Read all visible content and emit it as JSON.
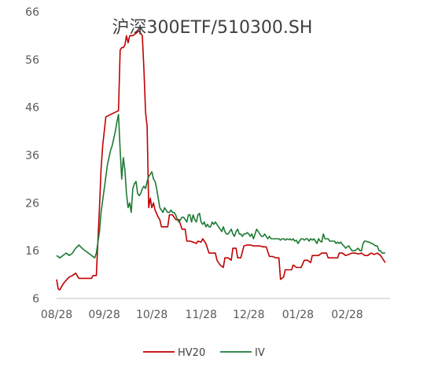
{
  "chart_data": {
    "type": "line",
    "title": "沪深300ETF/510300.SH",
    "xlabel": "",
    "ylabel": "",
    "ylim": [
      6,
      66
    ],
    "yticks": [
      6,
      16,
      26,
      36,
      46,
      56,
      66
    ],
    "xlim": [
      0,
      210
    ],
    "xticks": [
      {
        "label": "08/28",
        "x": 0
      },
      {
        "label": "09/28",
        "x": 30
      },
      {
        "label": "10/28",
        "x": 60
      },
      {
        "label": "11/28",
        "x": 91
      },
      {
        "label": "12/28",
        "x": 121
      },
      {
        "label": "01/28",
        "x": 152
      },
      {
        "label": "02/28",
        "x": 183
      }
    ],
    "grid": false,
    "legend_position": "bottom",
    "series": [
      {
        "name": "HV20",
        "color": "#c00000",
        "points": [
          [
            0,
            10
          ],
          [
            1,
            8
          ],
          [
            2,
            7.8
          ],
          [
            4,
            9
          ],
          [
            6,
            9.8
          ],
          [
            8,
            10.5
          ],
          [
            10,
            10.8
          ],
          [
            12,
            11.3
          ],
          [
            14,
            10.2
          ],
          [
            16,
            10.2
          ],
          [
            18,
            10.2
          ],
          [
            20,
            10.2
          ],
          [
            22,
            10.2
          ],
          [
            23,
            10.8
          ],
          [
            25,
            10.8
          ],
          [
            26,
            18
          ],
          [
            27,
            25
          ],
          [
            28,
            33
          ],
          [
            29,
            38
          ],
          [
            31,
            44
          ],
          [
            34,
            44.5
          ],
          [
            37,
            45
          ],
          [
            39,
            45.3
          ],
          [
            40,
            58
          ],
          [
            41,
            58.5
          ],
          [
            42,
            58.5
          ],
          [
            43,
            59
          ],
          [
            44,
            61
          ],
          [
            45,
            59.5
          ],
          [
            46,
            61
          ],
          [
            48,
            61
          ],
          [
            50,
            61.5
          ],
          [
            52,
            62
          ],
          [
            53,
            61.5
          ],
          [
            54,
            61
          ],
          [
            55,
            54
          ],
          [
            56,
            45
          ],
          [
            57,
            42
          ],
          [
            58,
            25
          ],
          [
            59,
            27
          ],
          [
            60,
            25
          ],
          [
            61,
            26
          ],
          [
            62,
            24.5
          ],
          [
            64,
            23
          ],
          [
            65,
            22.5
          ],
          [
            66,
            21
          ],
          [
            68,
            21
          ],
          [
            70,
            21
          ],
          [
            71,
            23.5
          ],
          [
            73,
            23.5
          ],
          [
            75,
            22.5
          ],
          [
            77,
            22.5
          ],
          [
            79,
            20.5
          ],
          [
            81,
            20.5
          ],
          [
            82,
            18
          ],
          [
            84,
            18
          ],
          [
            86,
            17.8
          ],
          [
            88,
            17.5
          ],
          [
            89,
            18
          ],
          [
            91,
            17.8
          ],
          [
            92,
            18.5
          ],
          [
            94,
            17.5
          ],
          [
            96,
            15.5
          ],
          [
            98,
            15.5
          ],
          [
            100,
            15.5
          ],
          [
            101,
            14
          ],
          [
            103,
            13
          ],
          [
            105,
            12.5
          ],
          [
            106,
            14.5
          ],
          [
            108,
            14.5
          ],
          [
            110,
            14
          ],
          [
            111,
            16.5
          ],
          [
            113,
            16.5
          ],
          [
            114,
            14.5
          ],
          [
            116,
            14.5
          ],
          [
            118,
            17
          ],
          [
            120,
            17.2
          ],
          [
            122,
            17.2
          ],
          [
            124,
            17
          ],
          [
            126,
            17
          ],
          [
            128,
            17
          ],
          [
            130,
            16.8
          ],
          [
            132,
            16.8
          ],
          [
            134,
            14.8
          ],
          [
            136,
            14.8
          ],
          [
            138,
            14.5
          ],
          [
            140,
            14.5
          ],
          [
            141,
            10
          ],
          [
            143,
            10.5
          ],
          [
            144,
            12
          ],
          [
            146,
            12
          ],
          [
            148,
            12
          ],
          [
            149,
            13
          ],
          [
            151,
            12.5
          ],
          [
            152,
            12.5
          ],
          [
            154,
            12.5
          ],
          [
            156,
            14
          ],
          [
            158,
            14
          ],
          [
            160,
            13.5
          ],
          [
            161,
            15
          ],
          [
            163,
            15
          ],
          [
            165,
            15
          ],
          [
            167,
            15.5
          ],
          [
            168,
            15.5
          ],
          [
            170,
            15.5
          ],
          [
            171,
            14.5
          ],
          [
            173,
            14.5
          ],
          [
            175,
            14.5
          ],
          [
            177,
            14.5
          ],
          [
            178,
            15.5
          ],
          [
            180,
            15.5
          ],
          [
            182,
            15
          ],
          [
            184,
            15.2
          ],
          [
            186,
            15.5
          ],
          [
            188,
            15.5
          ],
          [
            190,
            15.3
          ],
          [
            192,
            15.5
          ],
          [
            194,
            15
          ],
          [
            196,
            15
          ],
          [
            198,
            15.5
          ],
          [
            200,
            15.2
          ],
          [
            202,
            15.5
          ],
          [
            204,
            15
          ],
          [
            206,
            14
          ],
          [
            207,
            13.5
          ]
        ]
      },
      {
        "name": "IV",
        "color": "#1e7a34",
        "points": [
          [
            0,
            15
          ],
          [
            2,
            14.5
          ],
          [
            4,
            15
          ],
          [
            6,
            15.5
          ],
          [
            8,
            15
          ],
          [
            10,
            15.5
          ],
          [
            12,
            16.5
          ],
          [
            14,
            17.2
          ],
          [
            16,
            16.5
          ],
          [
            18,
            16
          ],
          [
            20,
            15.5
          ],
          [
            22,
            15
          ],
          [
            24,
            14.5
          ],
          [
            25,
            15.5
          ],
          [
            27,
            20
          ],
          [
            28,
            24
          ],
          [
            30,
            29
          ],
          [
            32,
            34
          ],
          [
            34,
            37
          ],
          [
            35,
            38
          ],
          [
            37,
            41
          ],
          [
            38,
            43
          ],
          [
            39,
            44.5
          ],
          [
            40,
            37
          ],
          [
            41,
            31
          ],
          [
            42,
            35.5
          ],
          [
            43,
            33
          ],
          [
            44,
            28
          ],
          [
            45,
            25
          ],
          [
            46,
            26
          ],
          [
            47,
            24
          ],
          [
            48,
            29
          ],
          [
            49,
            30
          ],
          [
            50,
            30.5
          ],
          [
            51,
            28
          ],
          [
            52,
            27.5
          ],
          [
            53,
            28
          ],
          [
            54,
            29
          ],
          [
            55,
            29.5
          ],
          [
            56,
            29
          ],
          [
            57,
            30.5
          ],
          [
            58,
            31.5
          ],
          [
            59,
            32
          ],
          [
            60,
            32.5
          ],
          [
            61,
            31
          ],
          [
            62,
            30.5
          ],
          [
            63,
            29
          ],
          [
            64,
            27
          ],
          [
            65,
            25
          ],
          [
            66,
            24.5
          ],
          [
            67,
            24
          ],
          [
            68,
            25
          ],
          [
            69,
            24.5
          ],
          [
            70,
            24
          ],
          [
            71,
            24
          ],
          [
            72,
            24.5
          ],
          [
            73,
            24
          ],
          [
            74,
            24
          ],
          [
            75,
            23.5
          ],
          [
            76,
            22.5
          ],
          [
            77,
            22
          ],
          [
            78,
            22.5
          ],
          [
            79,
            23
          ],
          [
            80,
            23
          ],
          [
            81,
            22.5
          ],
          [
            82,
            22
          ],
          [
            83,
            23.5
          ],
          [
            84,
            23.5
          ],
          [
            85,
            22
          ],
          [
            86,
            23.5
          ],
          [
            87,
            22.5
          ],
          [
            88,
            22
          ],
          [
            89,
            23.5
          ],
          [
            90,
            23.8
          ],
          [
            91,
            22
          ],
          [
            92,
            21.5
          ],
          [
            93,
            22
          ],
          [
            94,
            21
          ],
          [
            95,
            21.5
          ],
          [
            96,
            21
          ],
          [
            97,
            21
          ],
          [
            98,
            22
          ],
          [
            99,
            21.5
          ],
          [
            100,
            22
          ],
          [
            101,
            21.5
          ],
          [
            102,
            21
          ],
          [
            103,
            20.5
          ],
          [
            104,
            20
          ],
          [
            105,
            21
          ],
          [
            106,
            20
          ],
          [
            107,
            19.5
          ],
          [
            108,
            19.5
          ],
          [
            109,
            20
          ],
          [
            110,
            20.5
          ],
          [
            111,
            19.5
          ],
          [
            112,
            19
          ],
          [
            113,
            20
          ],
          [
            114,
            20.5
          ],
          [
            115,
            19.5
          ],
          [
            116,
            19.5
          ],
          [
            117,
            19
          ],
          [
            118,
            19.5
          ],
          [
            119,
            19.5
          ],
          [
            120,
            19.8
          ],
          [
            121,
            19.5
          ],
          [
            122,
            19
          ],
          [
            123,
            19.5
          ],
          [
            124,
            18.5
          ],
          [
            125,
            19.5
          ],
          [
            126,
            20.5
          ],
          [
            127,
            20
          ],
          [
            128,
            19.5
          ],
          [
            129,
            19
          ],
          [
            130,
            19
          ],
          [
            131,
            19.5
          ],
          [
            132,
            19
          ],
          [
            133,
            18.5
          ],
          [
            134,
            19
          ],
          [
            135,
            18.5
          ],
          [
            136,
            18.5
          ],
          [
            137,
            18.5
          ],
          [
            138,
            18.5
          ],
          [
            139,
            18.5
          ],
          [
            140,
            18.5
          ],
          [
            141,
            18.2
          ],
          [
            142,
            18.5
          ],
          [
            143,
            18.5
          ],
          [
            144,
            18.2
          ],
          [
            145,
            18.5
          ],
          [
            146,
            18.3
          ],
          [
            147,
            18.5
          ],
          [
            148,
            18.2
          ],
          [
            149,
            18.5
          ],
          [
            150,
            18
          ],
          [
            151,
            18.2
          ],
          [
            152,
            17.5
          ],
          [
            153,
            18
          ],
          [
            154,
            18.5
          ],
          [
            155,
            18.5
          ],
          [
            156,
            18.2
          ],
          [
            157,
            18.5
          ],
          [
            158,
            18.5
          ],
          [
            159,
            18
          ],
          [
            160,
            18.5
          ],
          [
            161,
            18.2
          ],
          [
            162,
            18.5
          ],
          [
            163,
            18
          ],
          [
            164,
            17.5
          ],
          [
            165,
            18.5
          ],
          [
            166,
            18
          ],
          [
            167,
            17.8
          ],
          [
            168,
            19.5
          ],
          [
            169,
            18.5
          ],
          [
            170,
            18.5
          ],
          [
            171,
            18.5
          ],
          [
            172,
            18
          ],
          [
            173,
            18
          ],
          [
            174,
            18
          ],
          [
            175,
            18
          ],
          [
            176,
            17.5
          ],
          [
            177,
            17.8
          ],
          [
            178,
            17.5
          ],
          [
            179,
            17.8
          ],
          [
            180,
            17.3
          ],
          [
            181,
            17
          ],
          [
            182,
            16.5
          ],
          [
            183,
            16.8
          ],
          [
            184,
            17
          ],
          [
            185,
            16.5
          ],
          [
            186,
            16
          ],
          [
            187,
            16
          ],
          [
            188,
            16
          ],
          [
            189,
            16.3
          ],
          [
            190,
            16.5
          ],
          [
            191,
            16
          ],
          [
            192,
            16
          ],
          [
            193,
            17.5
          ],
          [
            194,
            18
          ],
          [
            195,
            18
          ],
          [
            196,
            17.8
          ],
          [
            197,
            17.8
          ],
          [
            198,
            17.5
          ],
          [
            199,
            17.5
          ],
          [
            200,
            17.2
          ],
          [
            201,
            17
          ],
          [
            202,
            17
          ],
          [
            203,
            16
          ],
          [
            204,
            16
          ],
          [
            205,
            15.5
          ],
          [
            206,
            15.5
          ],
          [
            207,
            15.5
          ]
        ]
      }
    ]
  }
}
